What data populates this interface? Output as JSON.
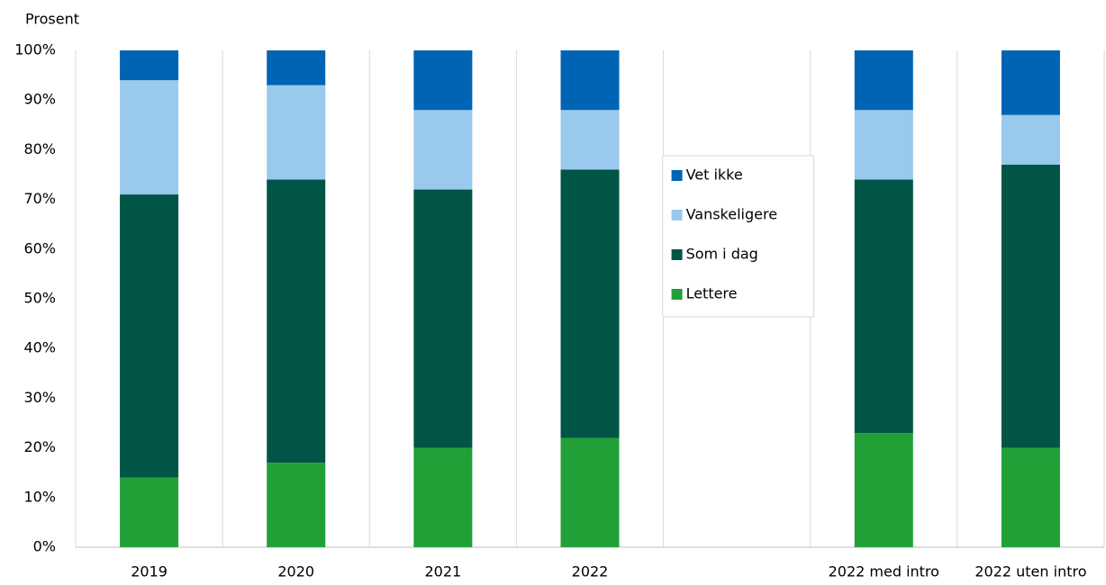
{
  "chart_data": {
    "type": "stacked_bar",
    "y_label": "Prosent",
    "categories": [
      "2019",
      "2020",
      "2021",
      "2022",
      null,
      "2022 med intro",
      "2022 uten intro"
    ],
    "series": [
      {
        "name": "Lettere",
        "color": "#21a038",
        "values": [
          14,
          17,
          20,
          22,
          null,
          23,
          20
        ]
      },
      {
        "name": "Som i dag",
        "color": "#005546",
        "values": [
          57,
          57,
          52,
          54,
          null,
          51,
          57
        ]
      },
      {
        "name": "Vanskeligere",
        "color": "#99c9ec",
        "values": [
          23,
          19,
          16,
          12,
          null,
          14,
          10
        ]
      },
      {
        "name": "Vet ikke",
        "color": "#0064b4",
        "values": [
          6,
          7,
          12,
          12,
          null,
          12,
          13
        ]
      }
    ],
    "ylim": [
      0,
      100
    ],
    "yticks": [
      {
        "value": 0,
        "label": "0%"
      },
      {
        "value": 10,
        "label": "10%"
      },
      {
        "value": 20,
        "label": "20%"
      },
      {
        "value": 30,
        "label": "30%"
      },
      {
        "value": 40,
        "label": "40%"
      },
      {
        "value": 50,
        "label": "50%"
      },
      {
        "value": 60,
        "label": "60%"
      },
      {
        "value": 70,
        "label": "70%"
      },
      {
        "value": 80,
        "label": "80%"
      },
      {
        "value": 90,
        "label": "90%"
      },
      {
        "value": 100,
        "label": "100%"
      }
    ],
    "legend": "center"
  }
}
